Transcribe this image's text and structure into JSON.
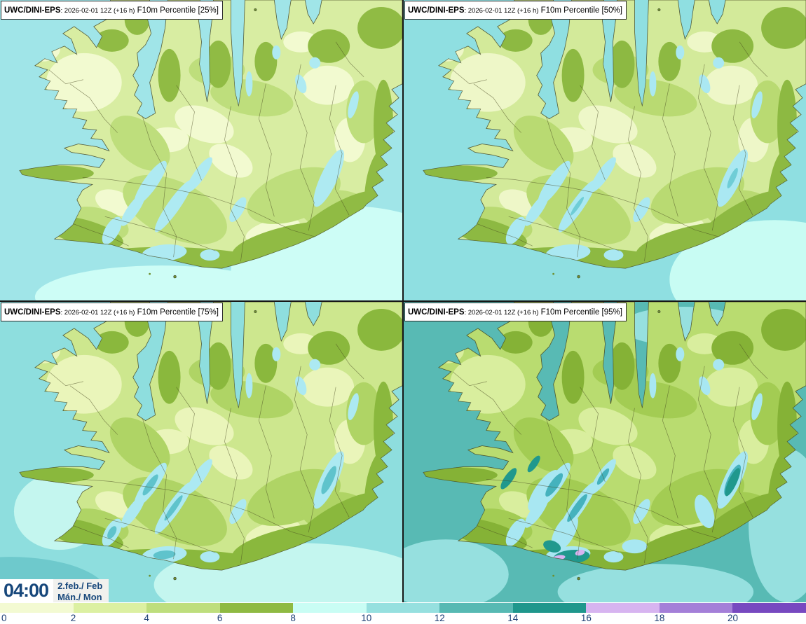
{
  "app": {
    "type": "ensemble-forecast-map-grid"
  },
  "panels": [
    {
      "id": "tl",
      "title": {
        "model": "UWC/DINI-EPS",
        "details": ": 2026-02-01 12Z (+16 h)",
        "param": " F10m Percentile [25%]"
      },
      "percentile": "25%",
      "colors": {
        "sea": "#a0e5e8",
        "seaPatch": "#cdfdf6",
        "land": "#d8eda2",
        "pale": "#f2fad0",
        "med": "#bede7c",
        "olive": "#90bb44",
        "streak": "#aeeaf2"
      }
    },
    {
      "id": "tr",
      "title": {
        "model": "UWC/DINI-EPS",
        "details": ": 2026-02-01 12Z (+16 h)",
        "param": " F10m Percentile [50%]"
      },
      "percentile": "50%",
      "colors": {
        "sea": "#8fdfe1",
        "seaPatch": "#c8fcf3",
        "land": "#d3ea9a",
        "pale": "#eef7c8",
        "med": "#b9da72",
        "olive": "#8db942",
        "streak": "#aae8f2",
        "core": "#6fcdd6"
      }
    },
    {
      "id": "bl",
      "title": {
        "model": "UWC/DINI-EPS",
        "details": ": 2026-02-01 12Z (+16 h)",
        "param": " F10m Percentile [75%]"
      },
      "percentile": "75%",
      "colors": {
        "sea": "#8edede",
        "seaPatch": "#c4f6ef",
        "seaMid": "#6ec9cc",
        "land": "#cde78e",
        "pale": "#eaf5ba",
        "med": "#afd465",
        "olive": "#8ab83d",
        "streak": "#ace9f2",
        "core": "#5fc3cc"
      }
    },
    {
      "id": "br",
      "title": {
        "model": "UWC/DINI-EPS",
        "details": ": 2026-02-01 12Z (+16 h)",
        "param": " F10m Percentile [95%]"
      },
      "percentile": "95%",
      "colors": {
        "sea": "#58bab4",
        "seaPatch": "#96e0df",
        "land": "#b9dc70",
        "pale": "#d9ee9e",
        "med": "#a3cc53",
        "olive": "#85b236",
        "streak": "#a8e7f2",
        "core": "#45b2bd",
        "deep": "#20988d",
        "lavender": "#d7b4f0"
      }
    }
  ],
  "timebox": {
    "time": "04:00",
    "date": "2.feb./ Feb",
    "day": "Mán./ Mon"
  },
  "colorbar": {
    "range": [
      0,
      22
    ],
    "tick_labels": [
      "0",
      "2",
      "4",
      "6",
      "8",
      "10",
      "12",
      "14",
      "16",
      "18",
      "20"
    ],
    "segment_colors": [
      "#f3fad2",
      "#dcf0a2",
      "#bede7d",
      "#8fba42",
      "#c9fdf4",
      "#96e0df",
      "#57b9b3",
      "#1f978c",
      "#d7b4f0",
      "#a47fd8",
      "#7749c0"
    ]
  }
}
